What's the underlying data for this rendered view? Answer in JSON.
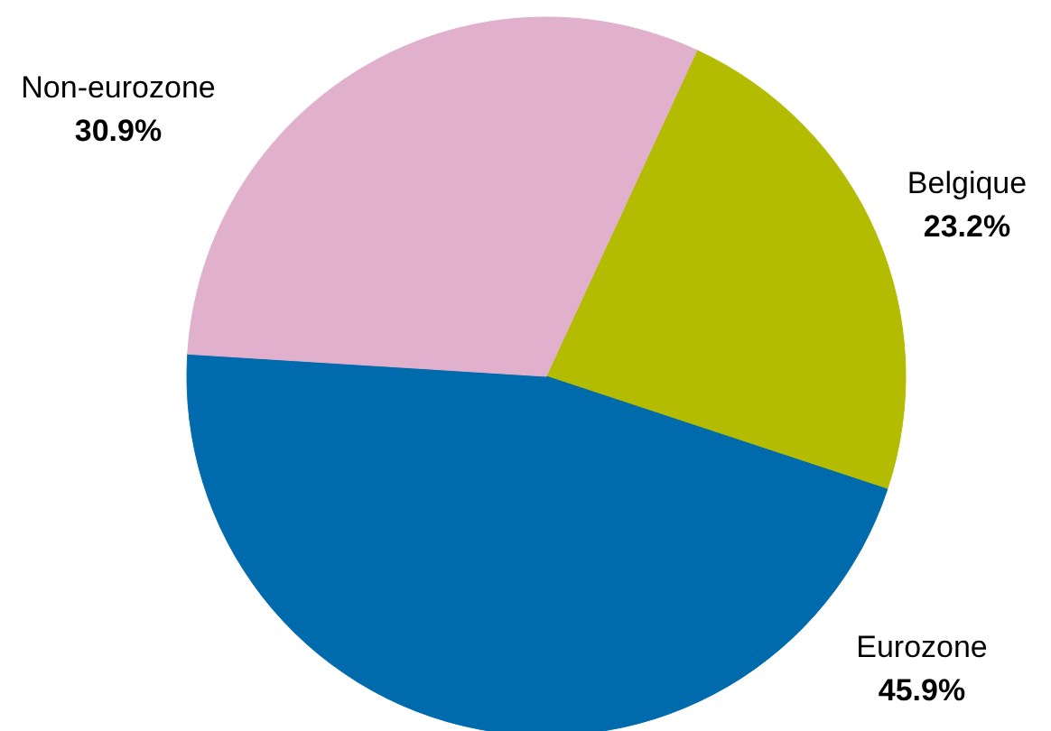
{
  "chart_data": {
    "type": "pie",
    "categories": [
      "Belgique",
      "Eurozone",
      "Non-eurozone"
    ],
    "values": [
      23.2,
      45.9,
      30.9
    ],
    "colors": [
      "#b3bc00",
      "#006bac",
      "#e0b0cc"
    ],
    "value_labels": [
      "23.2%",
      "45.9%",
      "30.9%"
    ]
  }
}
